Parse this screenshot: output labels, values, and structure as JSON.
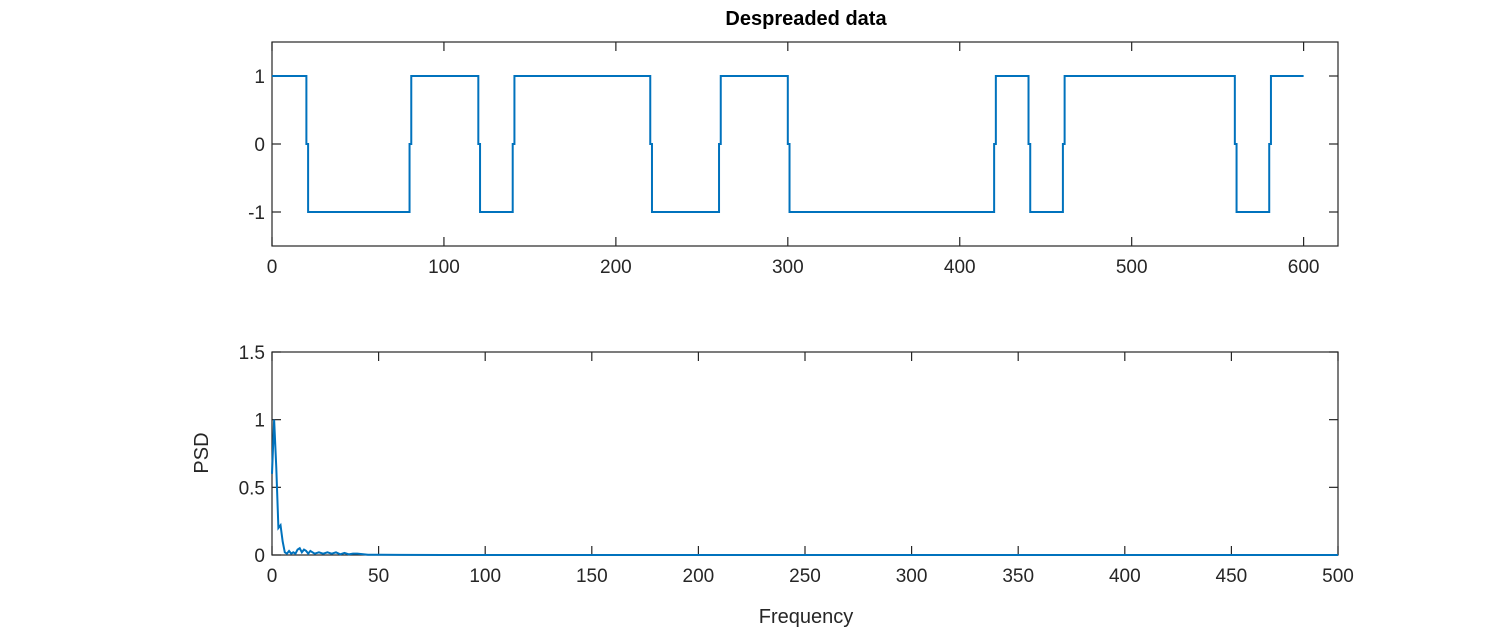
{
  "chart_data": [
    {
      "type": "line",
      "title": "Despreaded data",
      "xlabel": "",
      "ylabel": "",
      "xlim": [
        0,
        620
      ],
      "ylim": [
        -1.5,
        1.5
      ],
      "xticks": [
        0,
        100,
        200,
        300,
        400,
        500,
        600
      ],
      "yticks": [
        -1,
        0,
        1
      ],
      "grid": false,
      "series_color": "#0072BD",
      "step_levels": {
        "x_edges": [
          0,
          20,
          80,
          120,
          140,
          220,
          260,
          300,
          420,
          440,
          460,
          560,
          580,
          600
        ],
        "levels": [
          1,
          -1,
          1,
          -1,
          1,
          -1,
          1,
          -1,
          1,
          -1,
          1,
          -1,
          1
        ]
      }
    },
    {
      "type": "line",
      "title": "",
      "xlabel": "Frequency",
      "ylabel": "PSD",
      "xlim": [
        0,
        500
      ],
      "ylim": [
        0,
        1.5
      ],
      "xticks": [
        0,
        50,
        100,
        150,
        200,
        250,
        300,
        350,
        400,
        450,
        500
      ],
      "yticks": [
        0,
        0.5,
        1,
        1.5
      ],
      "grid": false,
      "series_color": "#0072BD",
      "series": [
        {
          "x": [
            0,
            1,
            2,
            3,
            4,
            5,
            6,
            7,
            8,
            9,
            10,
            11,
            12,
            13,
            14,
            15,
            16,
            17,
            18,
            19,
            20,
            22,
            24,
            26,
            28,
            30,
            32,
            34,
            36,
            38,
            40,
            45,
            50,
            60,
            80,
            100,
            150,
            200,
            250,
            300,
            350,
            400,
            450,
            500
          ],
          "y": [
            0.6,
            1.0,
            0.65,
            0.2,
            0.22,
            0.1,
            0.02,
            0.01,
            0.03,
            0.01,
            0.02,
            0.01,
            0.04,
            0.05,
            0.02,
            0.04,
            0.03,
            0.01,
            0.03,
            0.02,
            0.01,
            0.02,
            0.01,
            0.02,
            0.01,
            0.02,
            0.005,
            0.015,
            0.005,
            0.01,
            0.01,
            0.002,
            0.002,
            0.001,
            0.0,
            0.0,
            0.0,
            0.0,
            0.0,
            0.0,
            0.0,
            0.0,
            0.0,
            0.0
          ]
        }
      ]
    }
  ]
}
